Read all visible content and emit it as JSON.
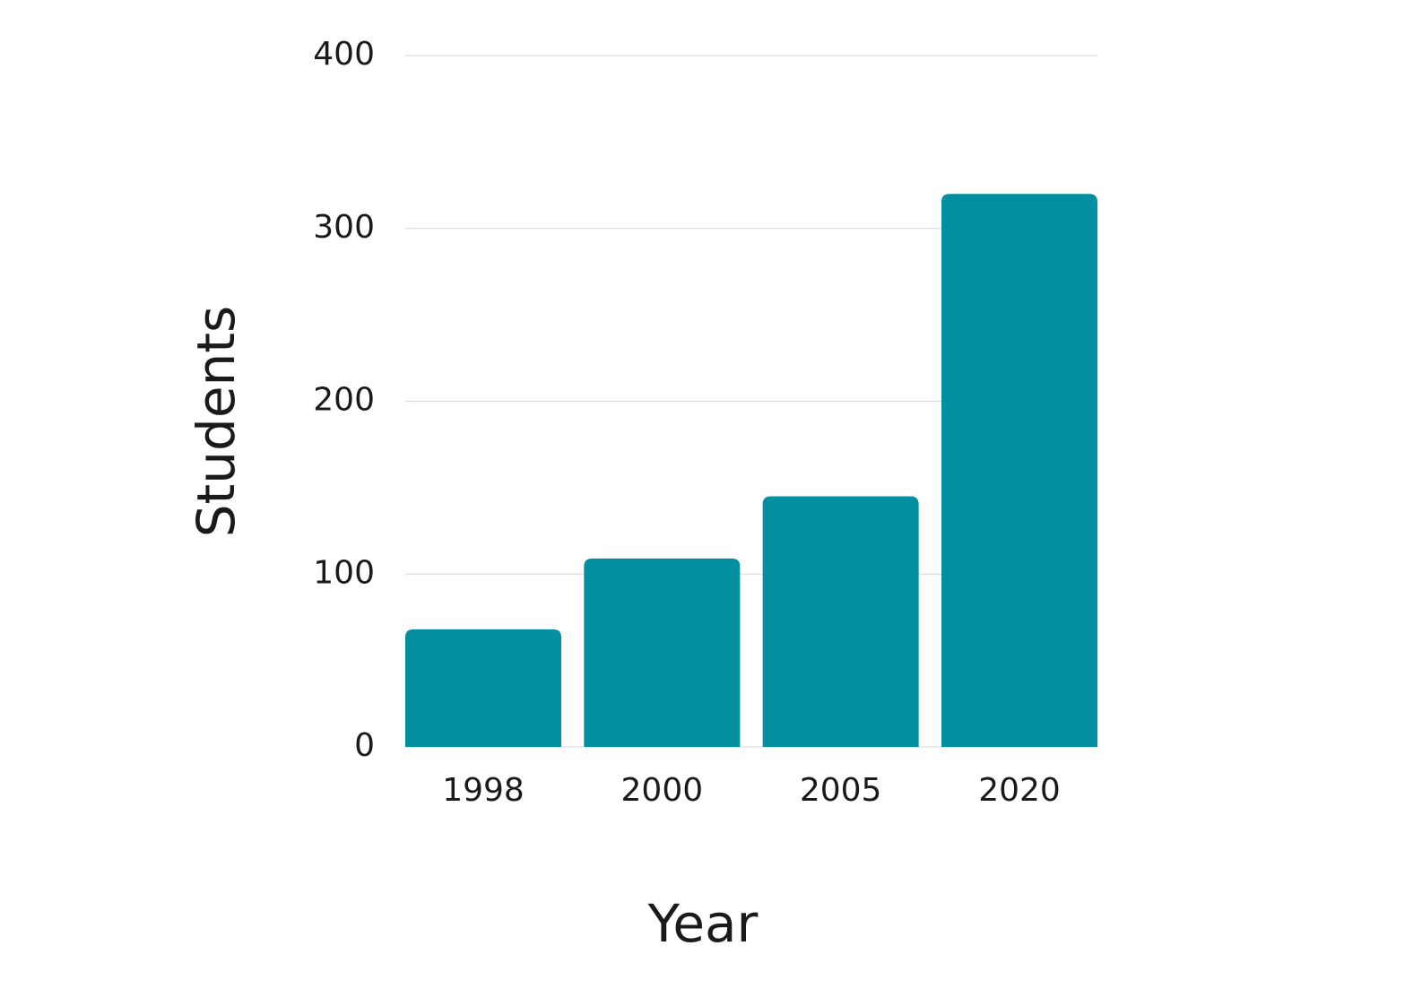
{
  "chart_data": {
    "type": "bar",
    "x_label": "Year",
    "y_label": "Students",
    "categories": [
      "1998",
      "2000",
      "2005",
      "2020"
    ],
    "values": [
      68,
      109,
      145,
      320
    ],
    "color": "#048fa1",
    "ylim": [
      0,
      400
    ],
    "yticks": [
      0,
      100,
      200,
      300,
      400
    ],
    "grid": true
  }
}
